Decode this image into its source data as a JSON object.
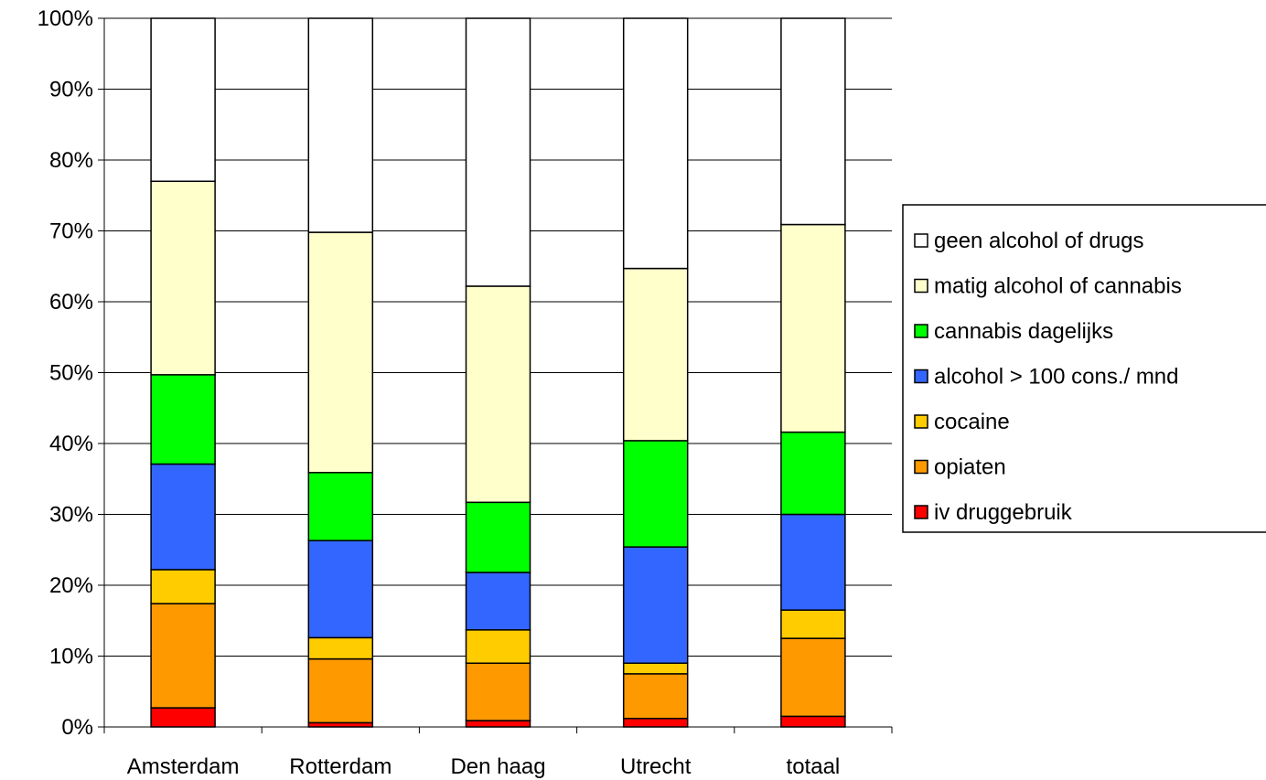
{
  "chart_data": {
    "type": "bar",
    "stacked": true,
    "normalized": true,
    "categories": [
      "Amsterdam",
      "Rotterdam",
      "Den haag",
      "Utrecht",
      "totaal"
    ],
    "ylim": [
      0,
      100
    ],
    "yticks": [
      "0%",
      "10%",
      "20%",
      "30%",
      "40%",
      "50%",
      "60%",
      "70%",
      "80%",
      "90%",
      "100%"
    ],
    "grid": true,
    "legend_position": "right",
    "series": [
      {
        "name": "iv druggebruik",
        "color": "#ff0000",
        "values": [
          2.7,
          0.6,
          0.9,
          1.2,
          1.5
        ]
      },
      {
        "name": "opiaten",
        "color": "#ff9900",
        "values": [
          14.7,
          9.0,
          8.1,
          6.3,
          11.0
        ]
      },
      {
        "name": "cocaine",
        "color": "#ffcc00",
        "values": [
          4.8,
          3.0,
          4.7,
          1.5,
          4.0
        ]
      },
      {
        "name": "alcohol > 100 cons./ mnd",
        "color": "#3366ff",
        "values": [
          14.9,
          13.7,
          8.1,
          16.4,
          13.5
        ]
      },
      {
        "name": "cannabis dagelijks",
        "color": "#00ff00",
        "values": [
          12.6,
          9.6,
          9.9,
          15.0,
          11.6
        ]
      },
      {
        "name": "matig alcohol of cannabis",
        "color": "#ffffcc",
        "values": [
          27.3,
          33.9,
          30.5,
          24.3,
          29.3
        ]
      },
      {
        "name": "geen alcohol of drugs",
        "color": "#ffffff",
        "values": [
          23.0,
          30.2,
          37.8,
          35.3,
          29.1
        ]
      }
    ]
  }
}
